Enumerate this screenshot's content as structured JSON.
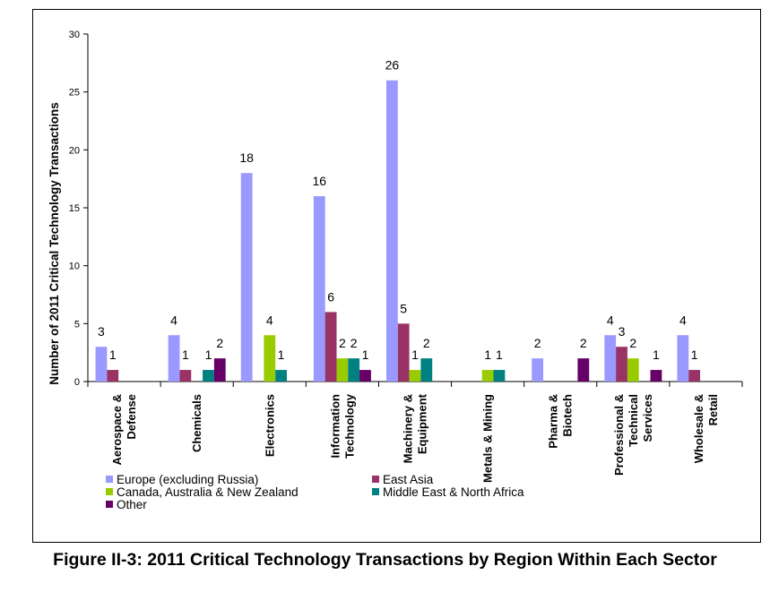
{
  "caption": "Figure II-3: 2011 Critical Technology Transactions by Region Within Each Sector",
  "colors": {
    "Europe (excluding Russia)": "#9999ff",
    "East Asia": "#993366",
    "Canada, Australia & New  Zealand": "#99cc00",
    "Middle East & North Africa": "#008080",
    "Other": "#660066"
  },
  "chart_data": {
    "type": "bar",
    "title": "",
    "xlabel": "",
    "ylabel": "Number of 2011 Critical Technology Transactions",
    "ylim": [
      0,
      30
    ],
    "yticks": [
      0,
      5,
      10,
      15,
      20,
      25,
      30
    ],
    "grid": false,
    "legend_position": "bottom",
    "categories": [
      [
        "Aerospace &",
        "Defense"
      ],
      [
        "Chemicals"
      ],
      [
        "Electronics"
      ],
      [
        "Information",
        "Technology"
      ],
      [
        "Machinery &",
        "Equipment"
      ],
      [
        "Metals & Mining"
      ],
      [
        "Pharma &",
        "Biotech"
      ],
      [
        "Professional &",
        "Technical",
        "Services"
      ],
      [
        "Wholesale &",
        "Retail"
      ]
    ],
    "series": [
      {
        "name": "Europe (excluding Russia)",
        "values": [
          3,
          4,
          18,
          16,
          26,
          0,
          2,
          4,
          4
        ]
      },
      {
        "name": "East Asia",
        "values": [
          1,
          1,
          0,
          6,
          5,
          0,
          0,
          3,
          1
        ]
      },
      {
        "name": "Canada, Australia & New  Zealand",
        "values": [
          0,
          0,
          4,
          2,
          1,
          1,
          0,
          2,
          0
        ]
      },
      {
        "name": "Middle East & North Africa",
        "values": [
          0,
          1,
          1,
          2,
          2,
          1,
          0,
          0,
          0
        ]
      },
      {
        "name": "Other",
        "values": [
          0,
          2,
          0,
          1,
          0,
          0,
          2,
          1,
          0
        ]
      }
    ]
  }
}
